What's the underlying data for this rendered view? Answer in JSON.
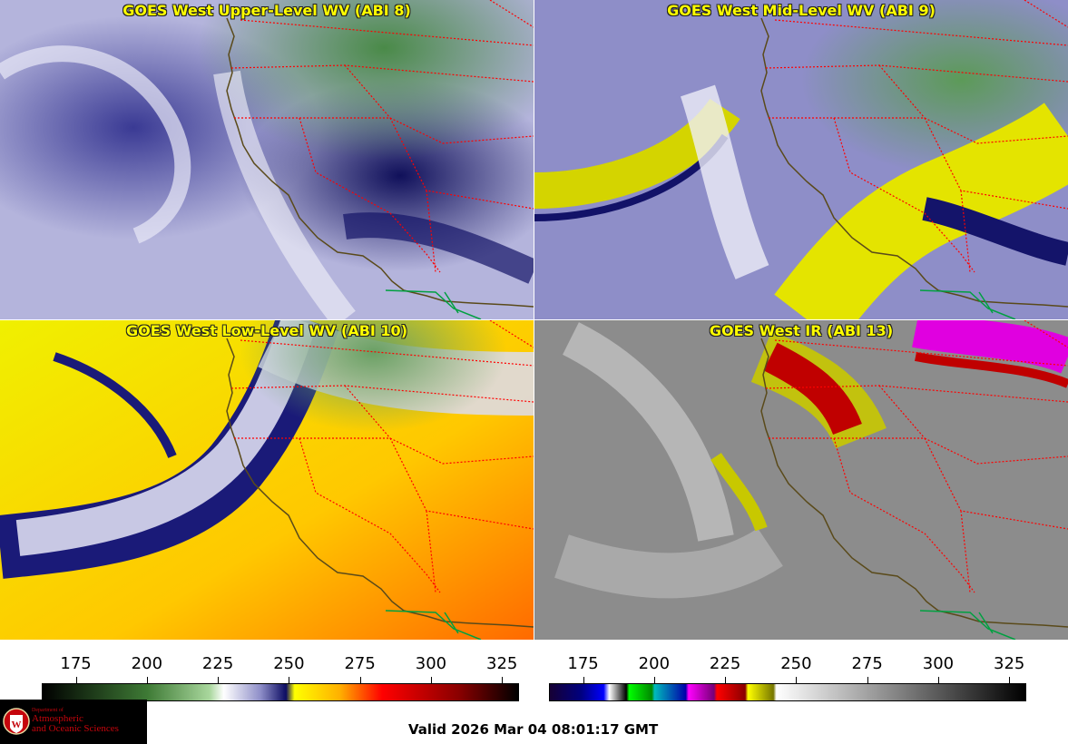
{
  "panels": [
    {
      "id": "upper",
      "title": "GOES West Upper-Level WV (ABI 8)",
      "palette": "wv"
    },
    {
      "id": "mid",
      "title": "GOES West Mid-Level WV (ABI 9)",
      "palette": "wv"
    },
    {
      "id": "low",
      "title": "GOES West Low-Level WV (ABI 10)",
      "palette": "wv"
    },
    {
      "id": "ir",
      "title": "GOES West IR (ABI 13)",
      "palette": "ir"
    }
  ],
  "colorbars": {
    "wv": {
      "ticks": [
        "175",
        "200",
        "225",
        "250",
        "275",
        "300",
        "325"
      ],
      "tick_values": [
        175,
        200,
        225,
        250,
        275,
        300,
        325
      ],
      "range": [
        163,
        331
      ],
      "stops": [
        {
          "value": 163,
          "color": "#000000"
        },
        {
          "value": 200,
          "color": "#3e7a35"
        },
        {
          "value": 222,
          "color": "#a9d79d"
        },
        {
          "value": 227,
          "color": "#ffffff"
        },
        {
          "value": 240,
          "color": "#8e8ec8"
        },
        {
          "value": 249,
          "color": "#0c0c62"
        },
        {
          "value": 252,
          "color": "#ffff00"
        },
        {
          "value": 268,
          "color": "#ffb000"
        },
        {
          "value": 283,
          "color": "#ff0000"
        },
        {
          "value": 310,
          "color": "#8a0000"
        },
        {
          "value": 331,
          "color": "#000000"
        }
      ]
    },
    "ir": {
      "ticks": [
        "175",
        "200",
        "225",
        "250",
        "275",
        "300",
        "325"
      ],
      "tick_values": [
        175,
        200,
        225,
        250,
        275,
        300,
        325
      ],
      "range": [
        163,
        331
      ],
      "stops": [
        {
          "value": 163,
          "color": "#160034"
        },
        {
          "value": 174,
          "color": "#00007f"
        },
        {
          "value": 182,
          "color": "#0000ff"
        },
        {
          "value": 184,
          "color": "#ffffff"
        },
        {
          "value": 190,
          "color": "#000000"
        },
        {
          "value": 191,
          "color": "#00ff00"
        },
        {
          "value": 199,
          "color": "#008800"
        },
        {
          "value": 200,
          "color": "#00bbbb"
        },
        {
          "value": 211,
          "color": "#0000aa"
        },
        {
          "value": 212,
          "color": "#ff00ff"
        },
        {
          "value": 221,
          "color": "#770077"
        },
        {
          "value": 222,
          "color": "#ff0000"
        },
        {
          "value": 232,
          "color": "#8a0000"
        },
        {
          "value": 233,
          "color": "#ffff00"
        },
        {
          "value": 242,
          "color": "#777700"
        },
        {
          "value": 243,
          "color": "#ffffff"
        },
        {
          "value": 331,
          "color": "#000000"
        }
      ]
    }
  },
  "logo": {
    "line1": "Department of",
    "line2": "Atmospheric",
    "line3": "and Oceanic Sciences"
  },
  "valid_time": "Valid 2026 Mar 04 08:01:17 GMT",
  "colors": {
    "title_text": "#ffff00",
    "state_borders": "#ff0000",
    "coastline": "#5a4a1a",
    "mexico_coast": "#00a040"
  }
}
